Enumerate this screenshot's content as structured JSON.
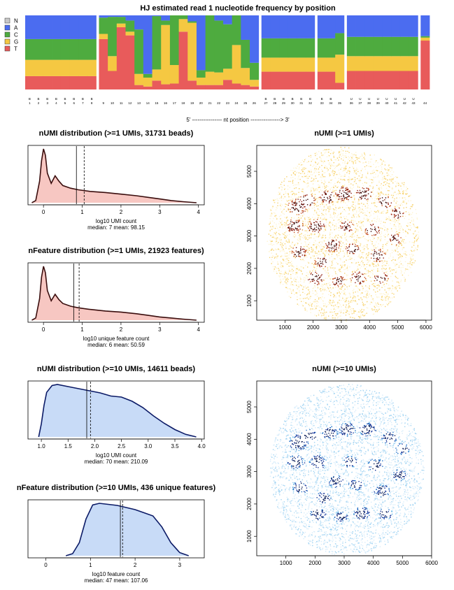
{
  "figure": {
    "top_title": "HJ estimated read 1 nucleotide frequency by position",
    "position_axis_label": "5' ---------------- nt position ----------------> 3'"
  },
  "legend": {
    "items": [
      {
        "key": "N",
        "color": "#c8c8c8"
      },
      {
        "key": "A",
        "color": "#4b6cf0"
      },
      {
        "key": "C",
        "color": "#4eab3f"
      },
      {
        "key": "G",
        "color": "#f5c842"
      },
      {
        "key": "T",
        "color": "#e85b5b"
      }
    ]
  },
  "chart_data": [
    {
      "type": "bar",
      "title": "HJ estimated read 1 nucleotide frequency by position",
      "xlabel": "5' ---------------- nt position ----------------> 3'",
      "stacked": true,
      "segments": [
        [
          1,
          8
        ],
        [
          9,
          26
        ],
        [
          27,
          32
        ],
        [
          33,
          35
        ],
        [
          36,
          43
        ],
        [
          44,
          44
        ]
      ],
      "positions": [
        {
          "pos": 1,
          "code": "B",
          "T": 0.18,
          "G": 0.22,
          "C": 0.28,
          "A": 0.32
        },
        {
          "pos": 2,
          "code": "B",
          "T": 0.18,
          "G": 0.22,
          "C": 0.28,
          "A": 0.32
        },
        {
          "pos": 3,
          "code": "B",
          "T": 0.18,
          "G": 0.22,
          "C": 0.28,
          "A": 0.32
        },
        {
          "pos": 4,
          "code": "B",
          "T": 0.18,
          "G": 0.22,
          "C": 0.28,
          "A": 0.32
        },
        {
          "pos": 5,
          "code": "B",
          "T": 0.18,
          "G": 0.22,
          "C": 0.28,
          "A": 0.32
        },
        {
          "pos": 6,
          "code": "B",
          "T": 0.18,
          "G": 0.22,
          "C": 0.28,
          "A": 0.32
        },
        {
          "pos": 7,
          "code": "B",
          "T": 0.18,
          "G": 0.22,
          "C": 0.28,
          "A": 0.32
        },
        {
          "pos": 8,
          "code": "B",
          "T": 0.18,
          "G": 0.22,
          "C": 0.28,
          "A": 0.32
        },
        {
          "pos": 9,
          "code": "",
          "T": 0.68,
          "G": 0.07,
          "C": 0.22,
          "A": 0.03
        },
        {
          "pos": 10,
          "code": "",
          "T": 0.25,
          "G": 0.2,
          "C": 0.53,
          "A": 0.02
        },
        {
          "pos": 11,
          "code": "",
          "T": 0.84,
          "G": 0.05,
          "C": 0.09,
          "A": 0.02
        },
        {
          "pos": 12,
          "code": "",
          "T": 0.73,
          "G": 0.05,
          "C": 0.15,
          "A": 0.07
        },
        {
          "pos": 13,
          "code": "",
          "T": 0.06,
          "G": 0.15,
          "C": 0.6,
          "A": 0.19
        },
        {
          "pos": 14,
          "code": "",
          "T": 0.04,
          "G": 0.12,
          "C": 0.05,
          "A": 0.79
        },
        {
          "pos": 15,
          "code": "",
          "T": 0.12,
          "G": 0.15,
          "C": 0.72,
          "A": 0.01
        },
        {
          "pos": 16,
          "code": "",
          "T": 0.07,
          "G": 0.8,
          "C": 0.06,
          "A": 0.07
        },
        {
          "pos": 17,
          "code": "",
          "T": 0.08,
          "G": 0.25,
          "C": 0.67,
          "A": 0.0
        },
        {
          "pos": 18,
          "code": "",
          "T": 0.78,
          "G": 0.17,
          "C": 0.05,
          "A": 0.0
        },
        {
          "pos": 19,
          "code": "",
          "T": 0.12,
          "G": 0.78,
          "C": 0.02,
          "A": 0.08
        },
        {
          "pos": 20,
          "code": "",
          "T": 0.06,
          "G": 0.1,
          "C": 0.1,
          "A": 0.74
        },
        {
          "pos": 21,
          "code": "",
          "T": 0.06,
          "G": 0.18,
          "C": 0.76,
          "A": 0.0
        },
        {
          "pos": 22,
          "code": "",
          "T": 0.06,
          "G": 0.17,
          "C": 0.7,
          "A": 0.07
        },
        {
          "pos": 23,
          "code": "",
          "T": 0.13,
          "G": 0.15,
          "C": 0.6,
          "A": 0.12
        },
        {
          "pos": 24,
          "code": "",
          "T": 0.08,
          "G": 0.52,
          "C": 0.4,
          "A": 0.0
        },
        {
          "pos": 25,
          "code": "",
          "T": 0.06,
          "G": 0.23,
          "C": 0.38,
          "A": 0.33
        },
        {
          "pos": 26,
          "code": "",
          "T": 0.04,
          "G": 0.09,
          "C": 0.23,
          "A": 0.64
        },
        {
          "pos": 27,
          "code": "B",
          "T": 0.24,
          "G": 0.19,
          "C": 0.26,
          "A": 0.31
        },
        {
          "pos": 28,
          "code": "B",
          "T": 0.24,
          "G": 0.19,
          "C": 0.26,
          "A": 0.31
        },
        {
          "pos": 29,
          "code": "B",
          "T": 0.24,
          "G": 0.19,
          "C": 0.26,
          "A": 0.31
        },
        {
          "pos": 30,
          "code": "B",
          "T": 0.24,
          "G": 0.19,
          "C": 0.26,
          "A": 0.31
        },
        {
          "pos": 31,
          "code": "B",
          "T": 0.24,
          "G": 0.19,
          "C": 0.26,
          "A": 0.31
        },
        {
          "pos": 32,
          "code": "B",
          "T": 0.24,
          "G": 0.19,
          "C": 0.26,
          "A": 0.31
        },
        {
          "pos": 33,
          "code": "B",
          "T": 0.24,
          "G": 0.19,
          "C": 0.26,
          "A": 0.31
        },
        {
          "pos": 34,
          "code": "B",
          "T": 0.24,
          "G": 0.19,
          "C": 0.26,
          "A": 0.31
        },
        {
          "pos": 35,
          "code": "",
          "T": 0.09,
          "G": 0.38,
          "C": 0.29,
          "A": 0.24
        },
        {
          "pos": 36,
          "code": "U",
          "T": 0.25,
          "G": 0.2,
          "C": 0.26,
          "A": 0.29
        },
        {
          "pos": 37,
          "code": "U",
          "T": 0.25,
          "G": 0.2,
          "C": 0.26,
          "A": 0.29
        },
        {
          "pos": 38,
          "code": "U",
          "T": 0.25,
          "G": 0.2,
          "C": 0.26,
          "A": 0.29
        },
        {
          "pos": 39,
          "code": "U",
          "T": 0.25,
          "G": 0.2,
          "C": 0.26,
          "A": 0.29
        },
        {
          "pos": 40,
          "code": "U",
          "T": 0.25,
          "G": 0.2,
          "C": 0.26,
          "A": 0.29
        },
        {
          "pos": 41,
          "code": "U",
          "T": 0.25,
          "G": 0.2,
          "C": 0.26,
          "A": 0.29
        },
        {
          "pos": 42,
          "code": "U",
          "T": 0.25,
          "G": 0.2,
          "C": 0.26,
          "A": 0.29
        },
        {
          "pos": 43,
          "code": "U",
          "T": 0.25,
          "G": 0.2,
          "C": 0.26,
          "A": 0.29
        },
        {
          "pos": 44,
          "code": "",
          "T": 0.66,
          "G": 0.04,
          "C": 0.02,
          "A": 0.28
        }
      ]
    },
    {
      "type": "area",
      "title": "nUMI distribution (>=1 UMIs, 31731 beads)",
      "xlabel": "log10 UMI count",
      "stats": "median: 7   mean: 98.15",
      "xlim": [
        -0.4,
        4.15
      ],
      "xticks": [
        "0",
        "1",
        "2",
        "3",
        "4"
      ],
      "median_log10": 0.85,
      "mean_log10": 1.05,
      "fill": "#f7c7c2",
      "line": "#3a0d0d",
      "x": [
        -0.3,
        -0.2,
        -0.1,
        -0.05,
        0.0,
        0.05,
        0.1,
        0.2,
        0.3,
        0.4,
        0.5,
        0.7,
        0.9,
        1.2,
        1.6,
        2.0,
        2.4,
        2.7,
        3.0,
        3.3,
        3.6,
        3.95
      ],
      "y": [
        0.0,
        0.04,
        0.4,
        0.78,
        1.0,
        0.88,
        0.55,
        0.36,
        0.5,
        0.4,
        0.32,
        0.27,
        0.24,
        0.21,
        0.19,
        0.16,
        0.13,
        0.1,
        0.07,
        0.04,
        0.02,
        0.0
      ]
    },
    {
      "type": "area",
      "title": "nFeature distribution (>=1 UMIs, 21923 features)",
      "xlabel": "log10 unique feature count",
      "stats": "median: 6   mean: 50.59",
      "xlim": [
        -0.4,
        4.15
      ],
      "xticks": [
        "0",
        "1",
        "2",
        "3",
        "4"
      ],
      "median_log10": 0.78,
      "mean_log10": 0.92,
      "fill": "#f7c7c2",
      "line": "#3a0d0d",
      "x": [
        -0.3,
        -0.2,
        -0.1,
        -0.05,
        0.0,
        0.05,
        0.1,
        0.2,
        0.3,
        0.4,
        0.5,
        0.7,
        0.9,
        1.2,
        1.6,
        2.0,
        2.4,
        2.7,
        3.0,
        3.3,
        3.6,
        3.95
      ],
      "y": [
        0.0,
        0.04,
        0.4,
        0.8,
        1.0,
        0.88,
        0.55,
        0.36,
        0.48,
        0.38,
        0.31,
        0.26,
        0.23,
        0.2,
        0.17,
        0.15,
        0.12,
        0.09,
        0.06,
        0.04,
        0.02,
        0.0
      ]
    },
    {
      "type": "area",
      "title": "nUMI distribution (>=10 UMIs, 14611 beads)",
      "xlabel": "log10 UMI count",
      "stats": "median: 70   mean: 210.09",
      "xlim": [
        0.75,
        4.05
      ],
      "xticks": [
        "1.0",
        "1.5",
        "2.0",
        "2.5",
        "3.0",
        "3.5",
        "4.0"
      ],
      "median_log10": 1.85,
      "mean_log10": 1.92,
      "fill": "#c8dbf7",
      "line": "#0b1a66",
      "x": [
        0.95,
        1.0,
        1.05,
        1.1,
        1.2,
        1.3,
        1.5,
        1.7,
        1.9,
        2.1,
        2.3,
        2.5,
        2.7,
        2.9,
        3.1,
        3.3,
        3.5,
        3.7,
        3.9
      ],
      "y": [
        0.0,
        0.25,
        0.6,
        0.85,
        0.98,
        1.0,
        0.96,
        0.92,
        0.88,
        0.84,
        0.78,
        0.76,
        0.68,
        0.56,
        0.4,
        0.26,
        0.14,
        0.05,
        0.0
      ]
    },
    {
      "type": "area",
      "title": "nFeature distribution (>=10 UMIs, 436 unique features)",
      "xlabel": "log10 feature count",
      "stats": "median: 47   mean: 107.06",
      "xlim": [
        -0.4,
        3.55
      ],
      "xticks": [
        "0",
        "1",
        "2",
        "3"
      ],
      "median_log10": 1.67,
      "mean_log10": 1.72,
      "fill": "#c8dbf7",
      "line": "#0b1a66",
      "x": [
        0.45,
        0.6,
        0.75,
        0.9,
        1.05,
        1.2,
        1.4,
        1.6,
        1.8,
        2.0,
        2.2,
        2.4,
        2.6,
        2.8,
        3.0,
        3.2
      ],
      "y": [
        0.0,
        0.04,
        0.25,
        0.7,
        0.97,
        1.0,
        0.98,
        0.96,
        0.92,
        0.88,
        0.82,
        0.76,
        0.55,
        0.25,
        0.06,
        0.0
      ]
    },
    {
      "type": "scatter",
      "title": "nUMI (>=1 UMIs)",
      "xlim": [
        0,
        6200
      ],
      "ylim": [
        400,
        5800
      ],
      "xticks": [
        "1000",
        "2000",
        "3000",
        "4000",
        "5000",
        "6000"
      ],
      "yticks": [
        "1000",
        "2000",
        "3000",
        "4000",
        "5000"
      ],
      "palette": [
        "#fff4cf",
        "#f7d36e",
        "#e59a3a",
        "#c8501c",
        "#8f1d10",
        "#3b0806"
      ],
      "disk": {
        "cx": 3050,
        "cy": 3050,
        "r": 2700
      },
      "hotspots": [
        [
          1450,
          3900,
          280
        ],
        [
          1800,
          4100,
          230
        ],
        [
          2500,
          4200,
          230
        ],
        [
          3100,
          4300,
          250
        ],
        [
          3800,
          4300,
          240
        ],
        [
          4550,
          4050,
          220
        ],
        [
          5000,
          3700,
          200
        ],
        [
          1350,
          3300,
          250
        ],
        [
          2100,
          3300,
          250
        ],
        [
          3200,
          3300,
          200
        ],
        [
          4100,
          3200,
          230
        ],
        [
          4900,
          2900,
          200
        ],
        [
          2700,
          2700,
          220
        ],
        [
          3400,
          2600,
          200
        ],
        [
          1500,
          2500,
          220
        ],
        [
          2300,
          2200,
          200
        ],
        [
          4300,
          2400,
          230
        ],
        [
          2100,
          1700,
          230
        ],
        [
          2900,
          1600,
          200
        ],
        [
          3600,
          1700,
          230
        ],
        [
          4400,
          1700,
          210
        ]
      ]
    },
    {
      "type": "scatter",
      "title": "nUMI (>=10 UMIs)",
      "xlim": [
        0,
        6000
      ],
      "ylim": [
        400,
        5800
      ],
      "xticks": [
        "1000",
        "2000",
        "3000",
        "4000",
        "5000",
        "6000"
      ],
      "yticks": [
        "1000",
        "2000",
        "3000",
        "4000",
        "5000"
      ],
      "palette": [
        "#d6ecfb",
        "#9fd3f2",
        "#4fb0e6",
        "#1f6fc7",
        "#14349a",
        "#081a55"
      ],
      "disk": {
        "cx": 3100,
        "cy": 3050,
        "r": 2650
      },
      "hotspots": [
        [
          1450,
          3900,
          280
        ],
        [
          1800,
          4100,
          230
        ],
        [
          2500,
          4200,
          230
        ],
        [
          3100,
          4300,
          250
        ],
        [
          3800,
          4300,
          240
        ],
        [
          4550,
          4050,
          220
        ],
        [
          5000,
          3700,
          200
        ],
        [
          1350,
          3300,
          250
        ],
        [
          2100,
          3300,
          250
        ],
        [
          3200,
          3300,
          200
        ],
        [
          4100,
          3200,
          230
        ],
        [
          4900,
          2900,
          200
        ],
        [
          2700,
          2700,
          220
        ],
        [
          3400,
          2600,
          200
        ],
        [
          1500,
          2500,
          220
        ],
        [
          2300,
          2200,
          200
        ],
        [
          4300,
          2400,
          230
        ],
        [
          2100,
          1700,
          230
        ],
        [
          2900,
          1600,
          200
        ],
        [
          3600,
          1700,
          230
        ],
        [
          4400,
          1700,
          210
        ]
      ]
    }
  ]
}
